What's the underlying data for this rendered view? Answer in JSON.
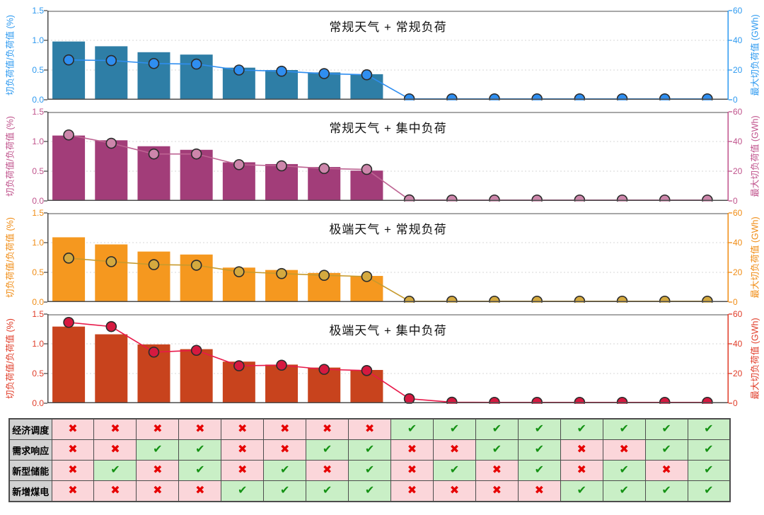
{
  "figure": {
    "background": "#ffffff"
  },
  "chart_data": [
    {
      "type": "bar+line",
      "title": "常规天气 + 常规负荷",
      "xlabel": "",
      "ylabel_left": "切负荷值/负荷值 (%)",
      "ylabel_right": "最大切负荷值 (GWh)",
      "left_ticks": [
        "0.0",
        "0.5",
        "1.0",
        "1.5"
      ],
      "right_ticks": [
        "0",
        "20",
        "40",
        "60"
      ],
      "ylim_left": [
        0,
        1.5
      ],
      "ylim_right": [
        0,
        60
      ],
      "grid": "dotted-horizontal",
      "legend": "none",
      "bars_pct": [
        0.98,
        0.9,
        0.8,
        0.76,
        0.54,
        0.5,
        0.46,
        0.43,
        0,
        0,
        0,
        0,
        0,
        0,
        0,
        0
      ],
      "line_gwh": [
        26.8,
        26.4,
        24.4,
        24.0,
        20.0,
        19.2,
        17.6,
        16.8,
        0.6,
        0.6,
        0.6,
        0.6,
        0.6,
        0.6,
        0.6,
        0.6
      ],
      "colors": {
        "bar": "#2e7ea6",
        "line": "#2f8ef0",
        "marker": "#2f8ef0",
        "axis": "#2e9af0"
      }
    },
    {
      "type": "bar+line",
      "title": "常规天气 + 集中负荷",
      "xlabel": "",
      "ylabel_left": "切负荷值/负荷值 (%)",
      "ylabel_right": "最大切负荷值 (GWh)",
      "left_ticks": [
        "0.0",
        "0.5",
        "1.0",
        "1.5"
      ],
      "right_ticks": [
        "0",
        "20",
        "40",
        "60"
      ],
      "ylim_left": [
        0,
        1.5
      ],
      "ylim_right": [
        0,
        60
      ],
      "grid": "dotted-horizontal",
      "legend": "none",
      "bars_pct": [
        1.1,
        1.02,
        0.92,
        0.86,
        0.65,
        0.62,
        0.57,
        0.51,
        0,
        0,
        0,
        0,
        0,
        0,
        0,
        0
      ],
      "line_gwh": [
        44.4,
        38.8,
        31.6,
        31.6,
        24.4,
        23.6,
        21.8,
        21.2,
        0.7,
        0.6,
        0.6,
        0.6,
        0.6,
        0.6,
        0.6,
        0.6
      ],
      "colors": {
        "bar": "#a23d79",
        "line": "#bd6392",
        "marker": "#cd86ab",
        "axis": "#c0538c"
      }
    },
    {
      "type": "bar+line",
      "title": "极端天气 + 常规负荷",
      "xlabel": "",
      "ylabel_left": "切负荷值/负荷值 (%)",
      "ylabel_right": "最大切负荷值 (GWh)",
      "left_ticks": [
        "0.0",
        "0.5",
        "1.0",
        "1.5"
      ],
      "right_ticks": [
        "0",
        "20",
        "40",
        "60"
      ],
      "ylim_left": [
        0,
        1.5
      ],
      "ylim_right": [
        0,
        60
      ],
      "grid": "dotted-horizontal",
      "legend": "none",
      "bars_pct": [
        1.09,
        0.97,
        0.85,
        0.8,
        0.58,
        0.54,
        0.49,
        0.44,
        0,
        0,
        0,
        0,
        0,
        0,
        0,
        0
      ],
      "line_gwh": [
        29.6,
        27.2,
        25.2,
        24.8,
        20.4,
        19.2,
        18.0,
        17.2,
        0.6,
        0.6,
        0.6,
        0.6,
        0.6,
        0.6,
        0.6,
        0.6
      ],
      "colors": {
        "bar": "#f5981f",
        "line": "#c79a2d",
        "marker": "#d4a93f",
        "axis": "#f08c14"
      }
    },
    {
      "type": "bar+line",
      "title": "极端天气 + 集中负荷",
      "xlabel": "",
      "ylabel_left": "切负荷值/负荷值 (%)",
      "ylabel_right": "最大切负荷值 (GWh)",
      "left_ticks": [
        "0.0",
        "0.5",
        "1.0",
        "1.5"
      ],
      "right_ticks": [
        "0",
        "20",
        "40",
        "60"
      ],
      "ylim_left": [
        0,
        1.5
      ],
      "ylim_right": [
        0,
        60
      ],
      "grid": "dotted-horizontal",
      "legend": "none",
      "bars_pct": [
        1.29,
        1.16,
        0.99,
        0.91,
        0.7,
        0.65,
        0.6,
        0.56,
        0,
        0,
        0,
        0,
        0,
        0,
        0,
        0
      ],
      "line_gwh": [
        54.4,
        51.6,
        34.4,
        35.6,
        25.2,
        25.6,
        22.8,
        22.0,
        3.0,
        0.7,
        0.6,
        0.6,
        0.6,
        0.6,
        0.6,
        0.6
      ],
      "colors": {
        "bar": "#c8431d",
        "line": "#e8194a",
        "marker": "#d61940",
        "axis": "#e03c28"
      }
    },
    {
      "type": "table",
      "glyphs": {
        "check": "✔",
        "cross": "✖"
      },
      "colors": {
        "check_bg": "#c9efc6",
        "cross_bg": "#fbd6da",
        "check_fg": "#149114",
        "cross_fg": "#e60000",
        "header_bg": "#d2d2d2",
        "border": "#4d4d4d"
      },
      "rows": [
        {
          "label": "经济调度",
          "cells": [
            0,
            0,
            0,
            0,
            0,
            0,
            0,
            0,
            1,
            1,
            1,
            1,
            1,
            1,
            1,
            1
          ]
        },
        {
          "label": "需求响应",
          "cells": [
            0,
            0,
            1,
            1,
            0,
            0,
            1,
            1,
            0,
            0,
            1,
            1,
            0,
            0,
            1,
            1
          ]
        },
        {
          "label": "新型储能",
          "cells": [
            0,
            1,
            0,
            1,
            0,
            1,
            0,
            1,
            0,
            1,
            0,
            1,
            0,
            1,
            0,
            1
          ]
        },
        {
          "label": "新增煤电",
          "cells": [
            0,
            0,
            0,
            0,
            1,
            1,
            1,
            1,
            0,
            0,
            0,
            0,
            1,
            1,
            1,
            1
          ]
        }
      ]
    }
  ]
}
